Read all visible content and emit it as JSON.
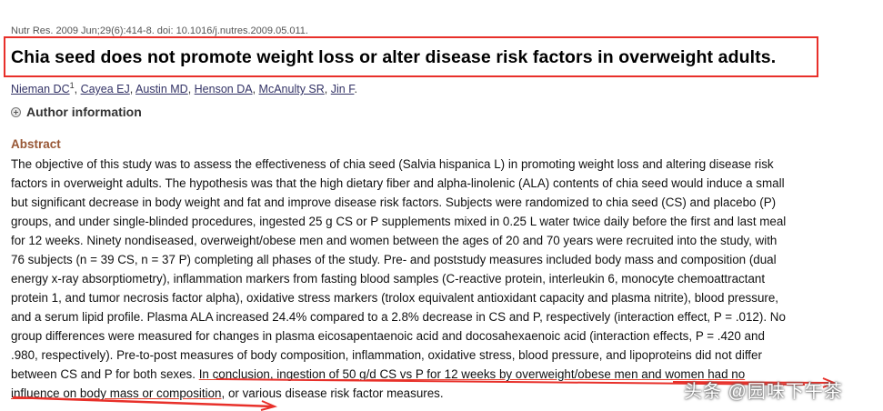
{
  "citation": "Nutr Res. 2009 Jun;29(6):414-8. doi: 10.1016/j.nutres.2009.05.011.",
  "title": "Chia seed does not promote weight loss or alter disease risk factors in overweight adults.",
  "authors": [
    {
      "name": "Nieman DC",
      "sup": "1"
    },
    {
      "name": "Cayea EJ"
    },
    {
      "name": "Austin MD"
    },
    {
      "name": "Henson DA"
    },
    {
      "name": "McAnulty SR"
    },
    {
      "name": "Jin F"
    }
  ],
  "author_info_label": "Author information",
  "abstract_heading": "Abstract",
  "abstract_lines": [
    "The objective of this study was to assess the effectiveness of chia seed (Salvia hispanica L) in promoting weight loss and altering disease risk",
    "factors in overweight adults. The hypothesis was that the high dietary fiber and alpha-linolenic (ALA) contents of chia seed would induce a small",
    "but significant decrease in body weight and fat and improve disease risk factors. Subjects were randomized to chia seed (CS) and placebo (P)",
    "groups, and under single-blinded procedures, ingested 25 g CS or P supplements mixed in 0.25 L water twice daily before the first and last meal",
    "for 12 weeks. Ninety nondiseased, overweight/obese men and women between the ages of 20 and 70 years were recruited into the study, with",
    "76 subjects (n = 39 CS, n = 37 P) completing all phases of the study. Pre- and poststudy measures included body mass and composition (dual",
    "energy x-ray absorptiometry), inflammation markers from fasting blood samples (C-reactive protein, interleukin 6, monocyte chemoattractant",
    "protein 1, and tumor necrosis factor alpha), oxidative stress markers (trolox equivalent antioxidant capacity and plasma nitrite), blood pressure,",
    "and a serum lipid profile. Plasma ALA increased 24.4% compared to a 2.8% decrease in CS and P, respectively (interaction effect, P = .012). No",
    "group differences were measured for changes in plasma eicosapentaenoic acid and docosahexaenoic acid (interaction effects, P = .420 and",
    ".980, respectively). Pre-to-post measures of body composition, inflammation, oxidative stress, blood pressure, and lipoproteins did not differ"
  ],
  "abstract_line_12_plain": "between CS and P for both sexes. ",
  "abstract_line_12_highlight": "In conclusion, ingestion of 50 g/d CS vs P for 12 weeks by overweight/obese men and women had no",
  "abstract_line_13_highlight": "influence on body mass or composition",
  "abstract_line_13_plain": ", or various disease risk factor measures.",
  "watermark": "头条 @园味下午茶",
  "colors": {
    "highlight_red": "#e8302a",
    "abstract_heading": "#985735",
    "author_link": "#333366"
  }
}
